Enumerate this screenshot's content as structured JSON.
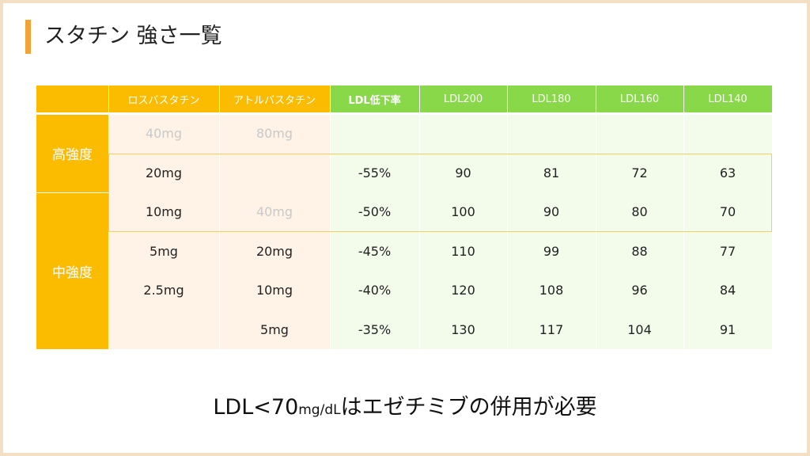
{
  "title": "スタチン 強さ一覧",
  "table": {
    "headers": [
      "",
      "ロスバスタチン",
      "アトルバスタチン",
      "LDL低下率",
      "LDL200",
      "LDL180",
      "LDL160",
      "LDL140"
    ],
    "groups": [
      "高強度",
      "中強度"
    ],
    "rows": [
      [
        "40mg",
        "80mg",
        "",
        "",
        "",
        "",
        ""
      ],
      [
        "20mg",
        "",
        "-55%",
        "90",
        "81",
        "72",
        "63"
      ],
      [
        "10mg",
        "40mg",
        "-50%",
        "100",
        "90",
        "80",
        "70"
      ],
      [
        "5mg",
        "20mg",
        "-45%",
        "110",
        "99",
        "88",
        "77"
      ],
      [
        "2.5mg",
        "10mg",
        "-40%",
        "120",
        "108",
        "96",
        "84"
      ],
      [
        "",
        "5mg",
        "-35%",
        "130",
        "117",
        "104",
        "91"
      ]
    ]
  },
  "footer": {
    "prefix": "LDL<70",
    "unit": "mg/dL",
    "suffix": "はエゼチミブの併用が必要"
  },
  "colors": {
    "orange": "#fbbc00",
    "green": "#88d84a",
    "accent_bar": "#f1a33a",
    "highlight_border": "#f0d060"
  }
}
